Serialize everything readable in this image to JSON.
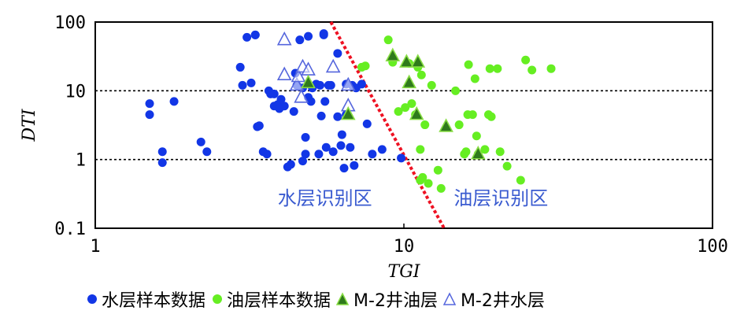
{
  "chart_data": {
    "type": "scatter",
    "xlabel": "TGI",
    "ylabel": "DTI",
    "xscale": "log",
    "yscale": "log",
    "xlim": [
      1,
      100
    ],
    "ylim": [
      0.1,
      100
    ],
    "x_ticks": [
      "1",
      "10",
      "100"
    ],
    "y_ticks": [
      "100",
      "10",
      "1",
      "0.1"
    ],
    "grid": "horizontal dashed at 10 and 1",
    "legend_position": "bottom",
    "colors": {
      "water_sample": "#1236e6",
      "oil_sample": "#66ee22",
      "m2_oil_fill": "#2f7a1c",
      "m2_oil_stroke": "#88dd44",
      "m2_water_stroke": "#5566dd",
      "boundary": "#ee1122",
      "zone_label": "#3a5bd0"
    },
    "boundary_line": {
      "points": [
        [
          5.8,
          100
        ],
        [
          13.5,
          0.1
        ]
      ],
      "style": "dotted"
    },
    "zone_labels": [
      "水层识别区",
      "油层识别区"
    ],
    "series": [
      {
        "name": "水层样本数据",
        "marker": "circle",
        "points": [
          [
            1.5,
            6.5
          ],
          [
            1.5,
            4.5
          ],
          [
            1.65,
            1.3
          ],
          [
            1.65,
            0.9
          ],
          [
            1.8,
            7
          ],
          [
            2.2,
            1.8
          ],
          [
            2.3,
            1.3
          ],
          [
            2.95,
            22
          ],
          [
            3.0,
            12
          ],
          [
            3.1,
            60
          ],
          [
            3.2,
            13
          ],
          [
            3.3,
            65
          ],
          [
            3.3,
            65
          ],
          [
            3.35,
            3
          ],
          [
            3.4,
            3.1
          ],
          [
            3.5,
            1.3
          ],
          [
            3.6,
            1.2
          ],
          [
            3.65,
            10
          ],
          [
            3.7,
            9
          ],
          [
            3.8,
            6
          ],
          [
            3.8,
            9
          ],
          [
            3.9,
            6.3
          ],
          [
            3.95,
            5.5
          ],
          [
            4.0,
            7.5
          ],
          [
            4.1,
            6
          ],
          [
            4.2,
            0.78
          ],
          [
            4.3,
            0.85
          ],
          [
            4.4,
            5
          ],
          [
            4.45,
            18
          ],
          [
            4.5,
            12
          ],
          [
            4.6,
            55
          ],
          [
            4.7,
            0.95
          ],
          [
            4.7,
            11
          ],
          [
            4.8,
            1.2
          ],
          [
            4.8,
            2.1
          ],
          [
            4.9,
            8
          ],
          [
            4.9,
            62
          ],
          [
            5.0,
            7
          ],
          [
            5.05,
            11
          ],
          [
            5.2,
            12.5
          ],
          [
            5.3,
            1.2
          ],
          [
            5.35,
            12
          ],
          [
            5.4,
            4.3
          ],
          [
            5.5,
            65
          ],
          [
            5.5,
            68
          ],
          [
            5.55,
            7
          ],
          [
            5.6,
            1.5
          ],
          [
            5.7,
            12
          ],
          [
            5.8,
            12
          ],
          [
            5.9,
            1.3
          ],
          [
            6.1,
            4.2
          ],
          [
            6.1,
            35
          ],
          [
            6.25,
            1.6
          ],
          [
            6.3,
            2.3
          ],
          [
            6.4,
            0.75
          ],
          [
            6.5,
            4.5
          ],
          [
            6.5,
            12.5
          ],
          [
            6.7,
            1.5
          ],
          [
            6.8,
            12
          ],
          [
            6.9,
            0.82
          ],
          [
            7.0,
            11
          ],
          [
            7.3,
            12.5
          ],
          [
            7.6,
            3.3
          ],
          [
            7.9,
            1.2
          ],
          [
            8.5,
            1.4
          ],
          [
            9.8,
            1.05
          ]
        ]
      },
      {
        "name": "油层样本数据",
        "marker": "circle",
        "points": [
          [
            7.3,
            22
          ],
          [
            7.5,
            23
          ],
          [
            8.9,
            55
          ],
          [
            9.2,
            26
          ],
          [
            9.6,
            5
          ],
          [
            10.1,
            5.7
          ],
          [
            10.4,
            25
          ],
          [
            10.6,
            6.5
          ],
          [
            10.9,
            4.5
          ],
          [
            11.1,
            22
          ],
          [
            11.3,
            0.5
          ],
          [
            11.3,
            1.4
          ],
          [
            11.4,
            17
          ],
          [
            11.5,
            0.55
          ],
          [
            11.7,
            3.2
          ],
          [
            12.0,
            0.45
          ],
          [
            12.3,
            12
          ],
          [
            12.9,
            0.7
          ],
          [
            13.2,
            0.38
          ],
          [
            14.7,
            10
          ],
          [
            15.1,
            3.2
          ],
          [
            15.7,
            1.2
          ],
          [
            15.9,
            1.3
          ],
          [
            16.1,
            4.5
          ],
          [
            16.2,
            24
          ],
          [
            16.7,
            4.5
          ],
          [
            17.0,
            15
          ],
          [
            17.2,
            2.2
          ],
          [
            17.4,
            1.2
          ],
          [
            18.3,
            1.4
          ],
          [
            18.8,
            4.5
          ],
          [
            19.0,
            21
          ],
          [
            19.2,
            4.2
          ],
          [
            20.1,
            21
          ],
          [
            20.5,
            1.3
          ],
          [
            21.6,
            0.8
          ],
          [
            23.9,
            0.5
          ],
          [
            24.8,
            28
          ],
          [
            26.0,
            20
          ],
          [
            30.0,
            21
          ]
        ]
      },
      {
        "name": "M-2井油层",
        "marker": "triangle-filled",
        "points": [
          [
            4.9,
            13
          ],
          [
            6.6,
            4.5
          ],
          [
            9.2,
            32
          ],
          [
            10.2,
            26
          ],
          [
            10.4,
            13
          ],
          [
            11.0,
            4.5
          ],
          [
            11.1,
            26
          ],
          [
            13.7,
            3.0
          ],
          [
            17.4,
            1.2
          ]
        ]
      },
      {
        "name": "M-2井水层",
        "marker": "triangle-open",
        "points": [
          [
            4.1,
            55
          ],
          [
            4.1,
            17
          ],
          [
            4.5,
            12
          ],
          [
            4.55,
            16
          ],
          [
            4.65,
            8
          ],
          [
            4.7,
            22
          ],
          [
            4.9,
            20
          ],
          [
            5.9,
            22
          ],
          [
            6.6,
            12
          ],
          [
            6.6,
            6
          ]
        ]
      }
    ]
  }
}
